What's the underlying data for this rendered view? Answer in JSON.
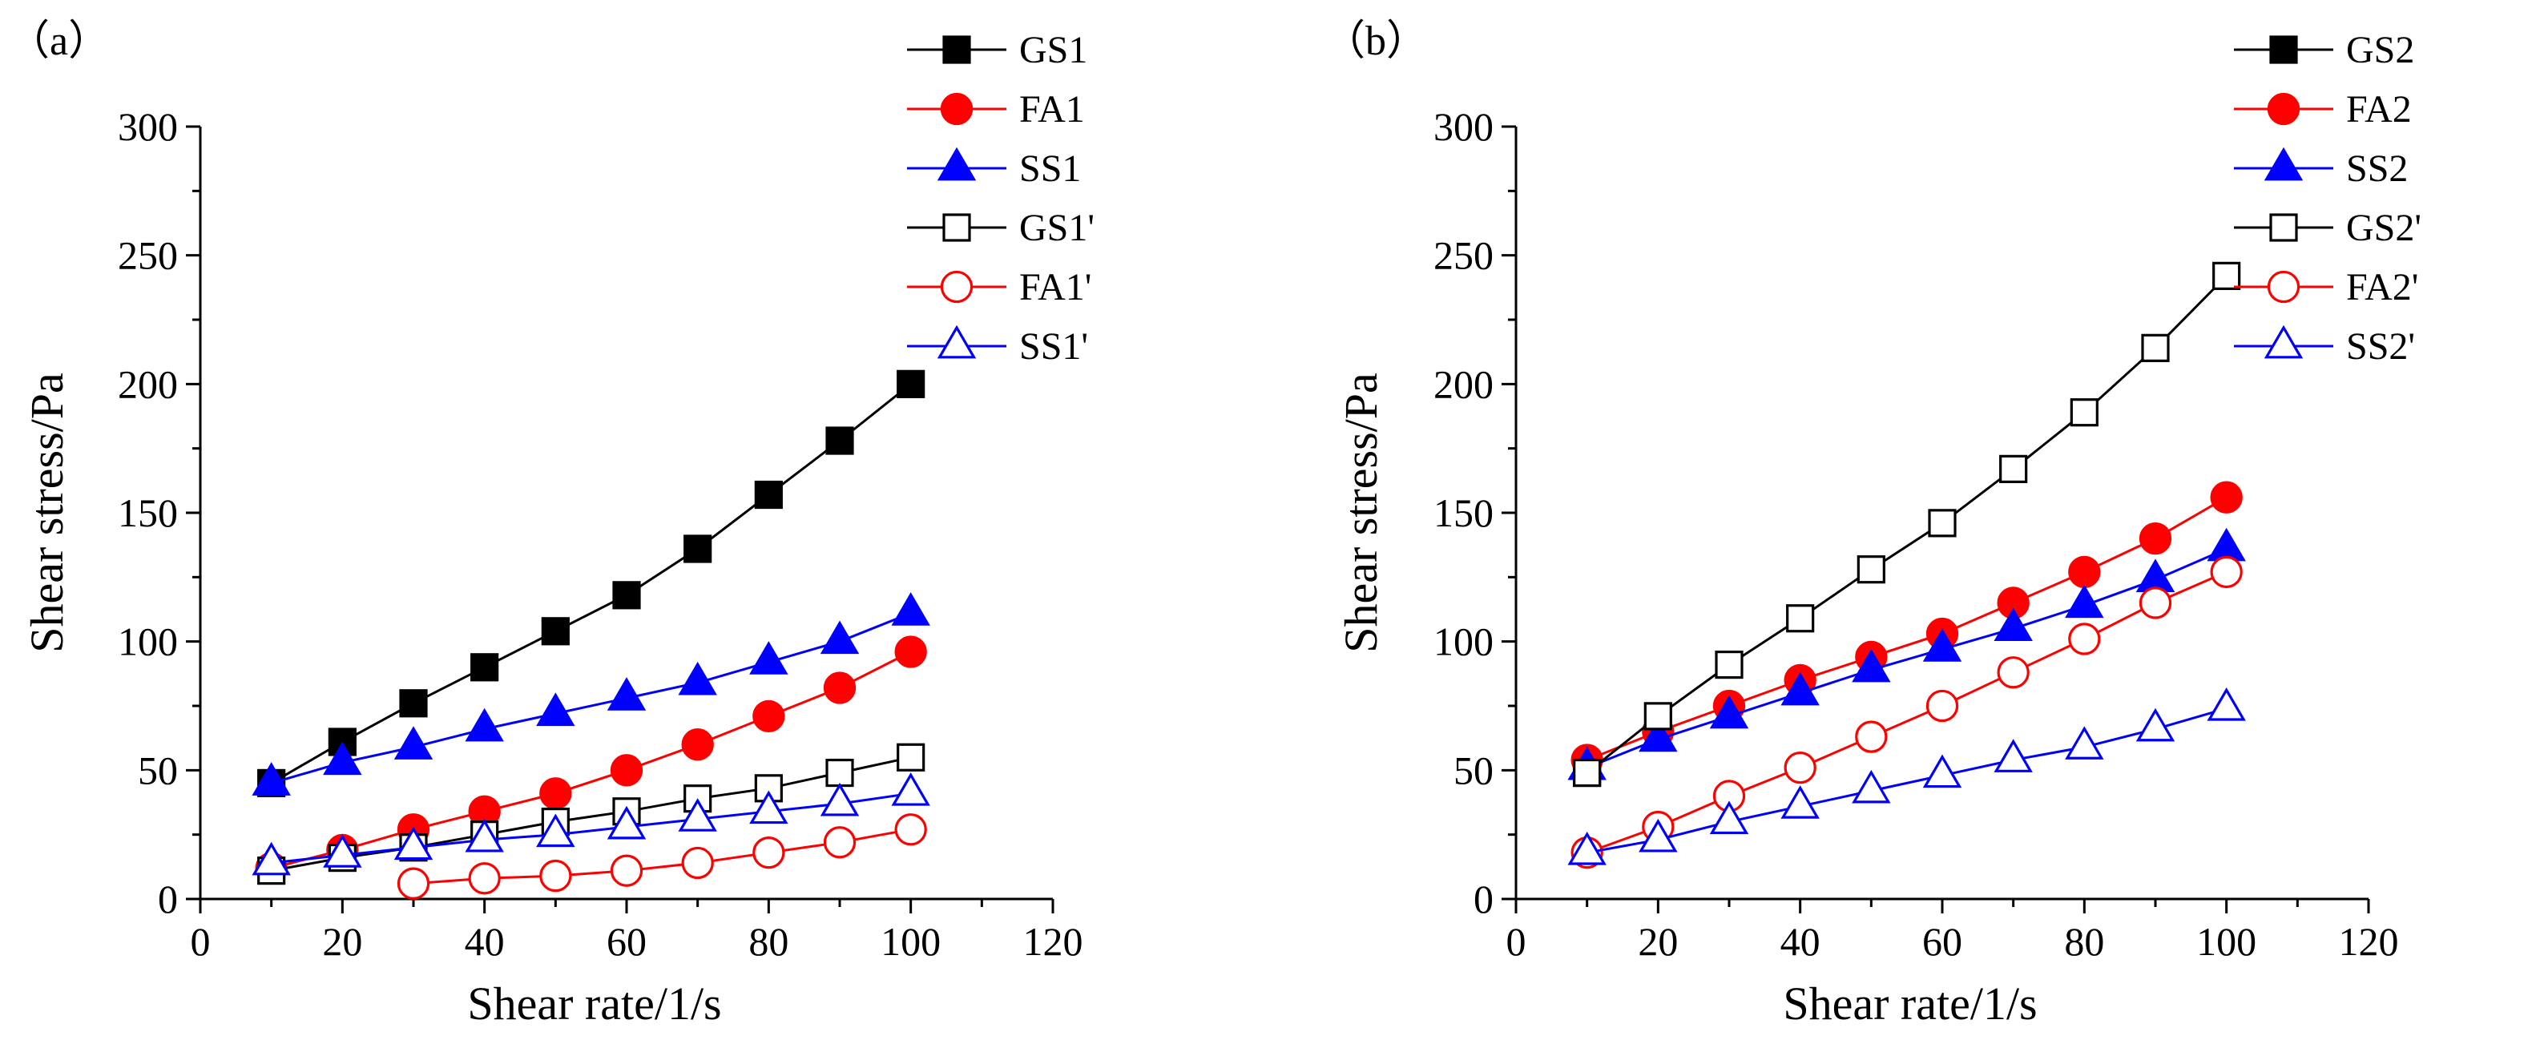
{
  "chart_data": [
    {
      "type": "line",
      "panel_label": "（a）",
      "xlabel": "Shear rate/1/s",
      "ylabel": "Shear stress/Pa",
      "xlim": [
        0,
        120
      ],
      "ylim": [
        0,
        300
      ],
      "xticks": [
        0,
        20,
        40,
        60,
        80,
        100,
        120
      ],
      "yticks": [
        0,
        50,
        100,
        150,
        200,
        250,
        300
      ],
      "legend_position": "top-right",
      "series": [
        {
          "name": "GS1",
          "color": "#000000",
          "marker": "square",
          "filled": true,
          "x": [
            10,
            20,
            30,
            40,
            50,
            60,
            70,
            80,
            90,
            100
          ],
          "y": [
            45,
            61,
            76,
            90,
            104,
            118,
            136,
            157,
            178,
            200
          ]
        },
        {
          "name": "FA1",
          "color": "#ff0000",
          "marker": "circle",
          "filled": true,
          "x": [
            10,
            20,
            30,
            40,
            50,
            60,
            70,
            80,
            90,
            100
          ],
          "y": [
            12,
            19,
            27,
            34,
            41,
            50,
            60,
            71,
            82,
            96
          ]
        },
        {
          "name": "SS1",
          "color": "#0000ff",
          "marker": "triangle",
          "filled": true,
          "x": [
            10,
            20,
            30,
            40,
            50,
            60,
            70,
            80,
            90,
            100
          ],
          "y": [
            45,
            53,
            59,
            66,
            72,
            78,
            84,
            92,
            100,
            111
          ]
        },
        {
          "name": "GS1'",
          "color": "#000000",
          "marker": "square",
          "filled": false,
          "x": [
            10,
            20,
            30,
            40,
            50,
            60,
            70,
            80,
            90,
            100
          ],
          "y": [
            11,
            16,
            20,
            25,
            30,
            34,
            39,
            43,
            49,
            55
          ]
        },
        {
          "name": "FA1'",
          "color": "#ff0000",
          "marker": "circle",
          "filled": false,
          "x": [
            30,
            40,
            50,
            60,
            70,
            80,
            90,
            100
          ],
          "y": [
            6,
            8,
            9,
            11,
            14,
            18,
            22,
            27
          ]
        },
        {
          "name": "SS1'",
          "color": "#0000ff",
          "marker": "triangle",
          "filled": false,
          "x": [
            10,
            20,
            30,
            40,
            50,
            60,
            70,
            80,
            90,
            100
          ],
          "y": [
            14,
            17,
            20,
            23,
            25,
            28,
            31,
            34,
            37,
            41
          ]
        }
      ]
    },
    {
      "type": "line",
      "panel_label": "（b）",
      "xlabel": "Shear rate/1/s",
      "ylabel": "Shear stress/Pa",
      "xlim": [
        0,
        120
      ],
      "ylim": [
        0,
        300
      ],
      "xticks": [
        0,
        20,
        40,
        60,
        80,
        100,
        120
      ],
      "yticks": [
        0,
        50,
        100,
        150,
        200,
        250,
        300
      ],
      "legend_position": "top-right",
      "series": [
        {
          "name": "GS2",
          "color": "#000000",
          "marker": "square",
          "filled": true,
          "x": [
            10
          ],
          "y": [
            49
          ]
        },
        {
          "name": "FA2",
          "color": "#ff0000",
          "marker": "circle",
          "filled": true,
          "x": [
            10,
            20,
            30,
            40,
            50,
            60,
            70,
            80,
            90,
            100
          ],
          "y": [
            54,
            65,
            75,
            85,
            94,
            103,
            115,
            127,
            140,
            156
          ]
        },
        {
          "name": "SS2",
          "color": "#0000ff",
          "marker": "triangle",
          "filled": true,
          "x": [
            10,
            20,
            30,
            40,
            50,
            60,
            70,
            80,
            90,
            100
          ],
          "y": [
            51,
            62,
            71,
            80,
            89,
            97,
            105,
            114,
            124,
            136
          ]
        },
        {
          "name": "GS2'",
          "color": "#000000",
          "marker": "square",
          "filled": false,
          "x": [
            10,
            20,
            30,
            40,
            50,
            60,
            70,
            80,
            90,
            100
          ],
          "y": [
            49,
            71,
            91,
            109,
            128,
            146,
            167,
            189,
            214,
            242
          ]
        },
        {
          "name": "FA2'",
          "color": "#ff0000",
          "marker": "circle",
          "filled": false,
          "x": [
            10,
            20,
            30,
            40,
            50,
            60,
            70,
            80,
            90,
            100
          ],
          "y": [
            18,
            28,
            40,
            51,
            63,
            75,
            88,
            101,
            115,
            127
          ]
        },
        {
          "name": "SS2'",
          "color": "#0000ff",
          "marker": "triangle",
          "filled": false,
          "x": [
            10,
            20,
            30,
            40,
            50,
            60,
            70,
            80,
            90,
            100
          ],
          "y": [
            18,
            23,
            30,
            36,
            42,
            48,
            54,
            59,
            66,
            74
          ]
        }
      ]
    }
  ]
}
